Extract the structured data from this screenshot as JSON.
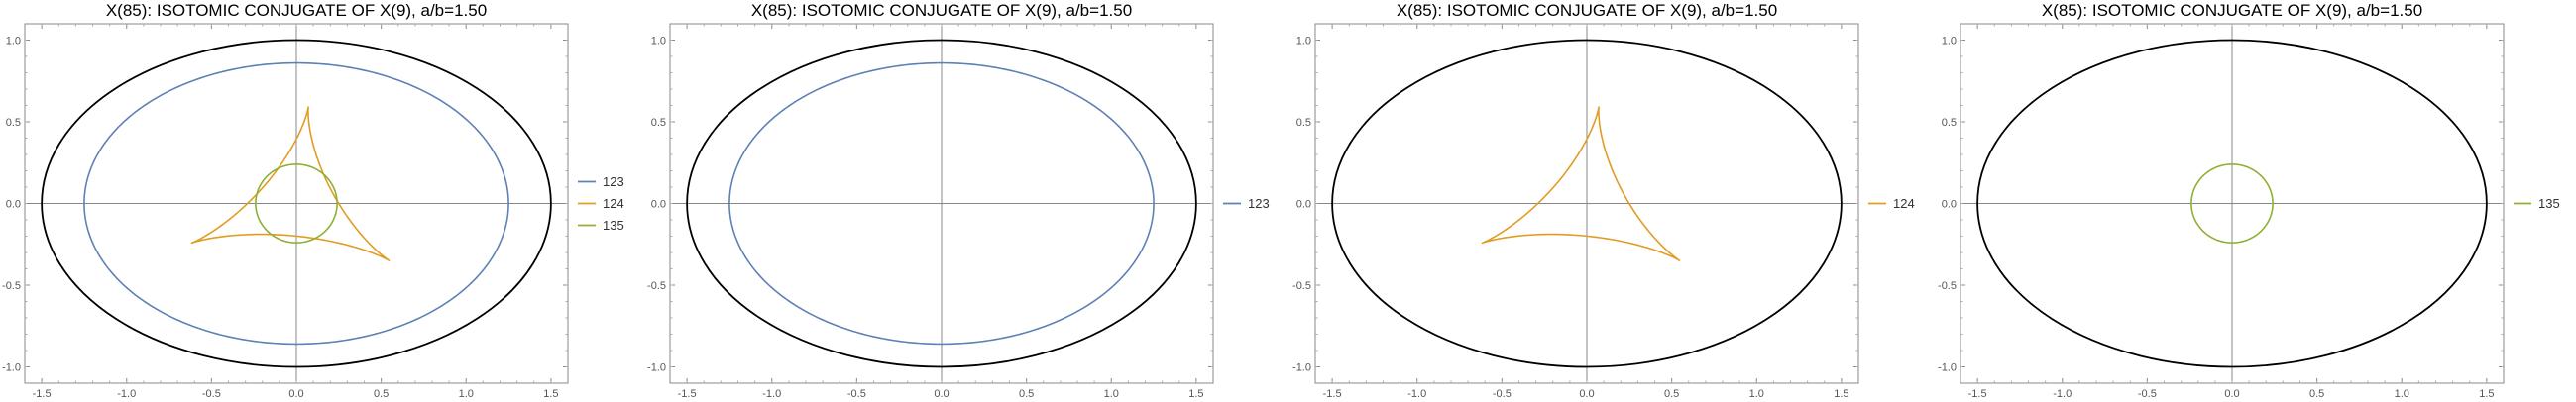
{
  "chart_data": [
    {
      "type": "line",
      "title": "X(85): ISOTOMIC CONJUGATE OF X(9), a/b=1.50",
      "xlim": [
        -1.6,
        1.6
      ],
      "ylim": [
        -1.1,
        1.1
      ],
      "xticks": [
        -1.5,
        -1.0,
        -0.5,
        0.0,
        0.5,
        1.0,
        1.5
      ],
      "xtick_labels": [
        "-1.5",
        "-1.0",
        "-0.5",
        "0.0",
        "0.5",
        "1.0",
        "1.5"
      ],
      "yticks": [
        -1.0,
        -0.5,
        0.0,
        0.5,
        1.0
      ],
      "ytick_labels": [
        "-1.0",
        "-0.5",
        "0.0",
        "0.5",
        "1.0"
      ],
      "grid": false,
      "legend_position": "right",
      "reference_ellipse": {
        "rx": 1.5,
        "ry": 1.0,
        "color": "#000000"
      },
      "series": [
        {
          "name": "123",
          "shape": "ellipse",
          "rx": 1.25,
          "ry": 0.86,
          "color": "#5e81b5"
        },
        {
          "name": "124",
          "shape": "deltoid",
          "center": [
            0.0,
            0.0
          ],
          "r": 0.18,
          "color": "#e19c24"
        },
        {
          "name": "135",
          "shape": "circle",
          "center": [
            0.0,
            0.0
          ],
          "r": 0.24,
          "color": "#8fb032"
        }
      ]
    },
    {
      "type": "line",
      "title": "X(85): ISOTOMIC CONJUGATE OF X(9), a/b=1.50",
      "xlim": [
        -1.6,
        1.6
      ],
      "ylim": [
        -1.1,
        1.1
      ],
      "xticks": [
        -1.5,
        -1.0,
        -0.5,
        0.0,
        0.5,
        1.0,
        1.5
      ],
      "xtick_labels": [
        "-1.5",
        "-1.0",
        "-0.5",
        "0.0",
        "0.5",
        "1.0",
        "1.5"
      ],
      "yticks": [
        -1.0,
        -0.5,
        0.0,
        0.5,
        1.0
      ],
      "ytick_labels": [
        "-1.0",
        "-0.5",
        "0.0",
        "0.5",
        "1.0"
      ],
      "grid": false,
      "legend_position": "right",
      "reference_ellipse": {
        "rx": 1.5,
        "ry": 1.0,
        "color": "#000000"
      },
      "series": [
        {
          "name": "123",
          "shape": "ellipse",
          "rx": 1.25,
          "ry": 0.86,
          "color": "#5e81b5"
        }
      ]
    },
    {
      "type": "line",
      "title": "X(85): ISOTOMIC CONJUGATE OF X(9), a/b=1.50",
      "xlim": [
        -1.6,
        1.6
      ],
      "ylim": [
        -1.1,
        1.1
      ],
      "xticks": [
        -1.5,
        -1.0,
        -0.5,
        0.0,
        0.5,
        1.0,
        1.5
      ],
      "xtick_labels": [
        "-1.5",
        "-1.0",
        "-0.5",
        "0.0",
        "0.5",
        "1.0",
        "1.5"
      ],
      "yticks": [
        -1.0,
        -0.5,
        0.0,
        0.5,
        1.0
      ],
      "ytick_labels": [
        "-1.0",
        "-0.5",
        "0.0",
        "0.5",
        "1.0"
      ],
      "grid": false,
      "legend_position": "right",
      "reference_ellipse": {
        "rx": 1.5,
        "ry": 1.0,
        "color": "#000000"
      },
      "series": [
        {
          "name": "124",
          "shape": "deltoid",
          "center": [
            0.0,
            0.0
          ],
          "r": 0.18,
          "color": "#e19c24"
        }
      ]
    },
    {
      "type": "line",
      "title": "X(85): ISOTOMIC CONJUGATE OF X(9), a/b=1.50",
      "xlim": [
        -1.6,
        1.6
      ],
      "ylim": [
        -1.1,
        1.1
      ],
      "xticks": [
        -1.5,
        -1.0,
        -0.5,
        0.0,
        0.5,
        1.0,
        1.5
      ],
      "xtick_labels": [
        "-1.5",
        "-1.0",
        "-0.5",
        "0.0",
        "0.5",
        "1.0",
        "1.5"
      ],
      "yticks": [
        -1.0,
        -0.5,
        0.0,
        0.5,
        1.0
      ],
      "ytick_labels": [
        "-1.0",
        "-0.5",
        "0.0",
        "0.5",
        "1.0"
      ],
      "grid": false,
      "legend_position": "right",
      "reference_ellipse": {
        "rx": 1.5,
        "ry": 1.0,
        "color": "#000000"
      },
      "series": [
        {
          "name": "135",
          "shape": "circle",
          "center": [
            0.0,
            0.0
          ],
          "r": 0.24,
          "color": "#8fb032"
        }
      ]
    }
  ]
}
